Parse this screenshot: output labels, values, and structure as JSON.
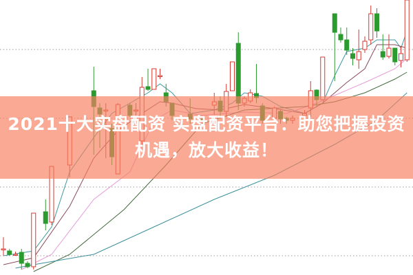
{
  "banner": {
    "line1": "2021十大实盘配资 实盘配资平台：助您把握投资",
    "line2": "机遇，放大收益！"
  },
  "colors": {
    "up": "#d8362e",
    "down": "#2b9b2f",
    "banner": "#f68062",
    "grid": "#9a9a9a",
    "ma5": "#3e9aa0",
    "ma10": "#8a4a5a",
    "ma20": "#e79ad8",
    "ma30": "#3f6b3a",
    "ma60": "#3a8f9a"
  },
  "chart_data": {
    "type": "candlestick",
    "title": "",
    "grid": true,
    "legend": "none",
    "candles": [
      {
        "day": 0,
        "o": 3.7,
        "c": 3.8,
        "h": 5.5,
        "l": 2.8
      },
      {
        "day": 1,
        "o": 3.5,
        "c": 3.0,
        "h": 3.8,
        "l": 2.8
      },
      {
        "day": 2,
        "o": 3.0,
        "c": 3.0,
        "h": 3.4,
        "l": 2.8
      },
      {
        "day": 3,
        "o": 3.3,
        "c": 1.7,
        "h": 3.8,
        "l": 0.8
      },
      {
        "day": 4,
        "o": 1.7,
        "c": 1.2,
        "h": 2.0,
        "l": 1.0
      },
      {
        "day": 5,
        "o": 1.2,
        "c": 9.0,
        "h": 9.0,
        "l": 0.8
      },
      {
        "day": 7,
        "o": 9.2,
        "c": 7.5,
        "h": 11.0,
        "l": 6.5
      },
      {
        "day": 8,
        "o": 7.7,
        "c": 15.8,
        "h": 15.8,
        "l": 7.3
      },
      {
        "day": 11,
        "o": 16.0,
        "c": 23.0,
        "h": 23.0,
        "l": 14.2
      },
      {
        "day": 15,
        "o": 26.8,
        "c": 24.5,
        "h": 30.3,
        "l": 17.5
      },
      {
        "day": 16,
        "o": 24.3,
        "c": 23.4,
        "h": 25.0,
        "l": 18.5
      },
      {
        "day": 17,
        "o": 24.0,
        "c": 24.0,
        "h": 25.0,
        "l": 17.0
      },
      {
        "day": 18,
        "o": 21.3,
        "c": 17.2,
        "h": 22.0,
        "l": 16.0
      },
      {
        "day": 19,
        "o": 14.7,
        "c": 24.8,
        "h": 25.0,
        "l": 14.7
      },
      {
        "day": 21,
        "o": 24.7,
        "c": 23.2,
        "h": 25.0,
        "l": 23.0
      },
      {
        "day": 22,
        "o": 24.0,
        "c": 24.0,
        "h": 25.0,
        "l": 22.0
      },
      {
        "day": 23,
        "o": 19.5,
        "c": 27.3,
        "h": 28.8,
        "l": 19.0
      },
      {
        "day": 24,
        "o": 27.4,
        "c": 27.0,
        "h": 30.0,
        "l": 26.8
      },
      {
        "day": 25,
        "o": 27.0,
        "c": 30.0,
        "h": 30.0,
        "l": 27.0
      },
      {
        "day": 26,
        "o": 29.0,
        "c": 29.0,
        "h": 30.0,
        "l": 28.5
      },
      {
        "day": 27,
        "o": 26.5,
        "c": 25.2,
        "h": 27.8,
        "l": 24.5
      },
      {
        "day": 28,
        "o": 25.0,
        "c": 23.2,
        "h": 25.0,
        "l": 22.5
      },
      {
        "day": 31,
        "o": 23.4,
        "c": 22.7,
        "h": 25.7,
        "l": 22.0
      },
      {
        "day": 33,
        "o": 22.7,
        "c": 22.3,
        "h": 23.0,
        "l": 22.0
      },
      {
        "day": 35,
        "o": 24.7,
        "c": 25.2,
        "h": 26.5,
        "l": 23.3
      },
      {
        "day": 36,
        "o": 25.3,
        "c": 23.8,
        "h": 26.0,
        "l": 23.0
      },
      {
        "day": 37,
        "o": 23.8,
        "c": 26.7,
        "h": 27.8,
        "l": 23.0
      },
      {
        "day": 38,
        "o": 26.8,
        "c": 31.0,
        "h": 31.0,
        "l": 26.8
      },
      {
        "day": 39,
        "o": 33.7,
        "c": 25.0,
        "h": 35.3,
        "l": 24.0
      },
      {
        "day": 40,
        "o": 25.0,
        "c": 25.7,
        "h": 26.0,
        "l": 24.5
      },
      {
        "day": 41,
        "o": 25.3,
        "c": 26.5,
        "h": 27.0,
        "l": 25.0
      },
      {
        "day": 42,
        "o": 26.4,
        "c": 25.8,
        "h": 30.7,
        "l": 25.0
      },
      {
        "day": 43,
        "o": 24.6,
        "c": 22.5,
        "h": 25.0,
        "l": 22.0
      },
      {
        "day": 45,
        "o": 22.8,
        "c": 24.3,
        "h": 24.5,
        "l": 22.5
      },
      {
        "day": 46,
        "o": 23.8,
        "c": 22.7,
        "h": 24.0,
        "l": 22.0
      },
      {
        "day": 47,
        "o": 22.8,
        "c": 22.5,
        "h": 23.0,
        "l": 22.0
      },
      {
        "day": 48,
        "o": 22.5,
        "c": 22.8,
        "h": 23.2,
        "l": 22.0
      },
      {
        "day": 50,
        "o": 23.2,
        "c": 23.5,
        "h": 24.0,
        "l": 23.0
      },
      {
        "day": 51,
        "o": 24.3,
        "c": 26.8,
        "h": 28.2,
        "l": 23.0
      },
      {
        "day": 52,
        "o": 26.9,
        "c": 25.5,
        "h": 27.0,
        "l": 24.5
      },
      {
        "day": 53,
        "o": 25.5,
        "c": 31.7,
        "h": 31.7,
        "l": 25.5
      },
      {
        "day": 55,
        "o": 38.0,
        "c": 35.3,
        "h": 38.0,
        "l": 28.2
      },
      {
        "day": 56,
        "o": 35.0,
        "c": 34.2,
        "h": 36.0,
        "l": 33.8
      },
      {
        "day": 57,
        "o": 34.2,
        "c": 32.7,
        "h": 36.0,
        "l": 32.0
      },
      {
        "day": 58,
        "o": 32.2,
        "c": 31.5,
        "h": 33.0,
        "l": 30.5
      },
      {
        "day": 59,
        "o": 31.3,
        "c": 32.5,
        "h": 35.7,
        "l": 30.0
      },
      {
        "day": 60,
        "o": 32.8,
        "c": 34.0,
        "h": 34.7,
        "l": 32.3
      },
      {
        "day": 61,
        "o": 34.2,
        "c": 38.0,
        "h": 39.2,
        "l": 33.5
      },
      {
        "day": 62,
        "o": 38.0,
        "c": 35.5,
        "h": 38.8,
        "l": 34.5
      },
      {
        "day": 63,
        "o": 32.5,
        "c": 31.7,
        "h": 35.0,
        "l": 31.3
      },
      {
        "day": 64,
        "o": 31.8,
        "c": 33.0,
        "h": 35.0,
        "l": 31.5
      },
      {
        "day": 65,
        "o": 33.0,
        "c": 31.0,
        "h": 33.0,
        "l": 30.5
      },
      {
        "day": 66,
        "o": 31.2,
        "c": 32.2,
        "h": 33.2,
        "l": 30.2
      },
      {
        "day": 67,
        "o": 31.3,
        "c": 40.0,
        "h": 40.0,
        "l": 31.0
      }
    ],
    "moving_averages": [
      {
        "key": "ma5",
        "points": [
          [
            0,
            2.8
          ],
          [
            5,
            3.5
          ],
          [
            8,
            7.0
          ],
          [
            11,
            15.0
          ],
          [
            15,
            20.0
          ],
          [
            18,
            23.5
          ],
          [
            21,
            25.0
          ],
          [
            24,
            26.5
          ],
          [
            26,
            27.8
          ],
          [
            28,
            26.5
          ],
          [
            31,
            23.5
          ],
          [
            35,
            24.0
          ],
          [
            38,
            25.0
          ],
          [
            40,
            26.5
          ],
          [
            43,
            26.0
          ],
          [
            46,
            24.5
          ],
          [
            50,
            23.5
          ],
          [
            53,
            25.0
          ],
          [
            55,
            29.0
          ],
          [
            57,
            32.5
          ],
          [
            60,
            33.0
          ],
          [
            62,
            34.2
          ],
          [
            65,
            34.2
          ],
          [
            66,
            33.0
          ],
          [
            67,
            35.5
          ]
        ]
      },
      {
        "key": "ma10",
        "points": [
          [
            0,
            1.5
          ],
          [
            5,
            2.5
          ],
          [
            11,
            10.0
          ],
          [
            15,
            17.0
          ],
          [
            19,
            21.0
          ],
          [
            23,
            23.5
          ],
          [
            26,
            25.2
          ],
          [
            28,
            25.0
          ],
          [
            32,
            24.2
          ],
          [
            36,
            24.0
          ],
          [
            40,
            24.8
          ],
          [
            45,
            24.2
          ],
          [
            50,
            23.5
          ],
          [
            53,
            25.0
          ],
          [
            57,
            28.0
          ],
          [
            60,
            30.0
          ],
          [
            62,
            33.5
          ],
          [
            65,
            33.5
          ],
          [
            67,
            33.0
          ]
        ]
      },
      {
        "key": "ma20",
        "points": [
          [
            3,
            0.8
          ],
          [
            8,
            3.0
          ],
          [
            15,
            11.0
          ],
          [
            21,
            15.0
          ],
          [
            25,
            22.5
          ],
          [
            28,
            24.0
          ],
          [
            33,
            23.2
          ],
          [
            40,
            23.7
          ],
          [
            47,
            23.5
          ],
          [
            52,
            25.0
          ],
          [
            56,
            26.5
          ],
          [
            60,
            28.0
          ],
          [
            65,
            30.0
          ],
          [
            67,
            31.5
          ]
        ]
      },
      {
        "key": "ma30",
        "points": [
          [
            5,
            0.5
          ],
          [
            11,
            3.0
          ],
          [
            20,
            9.5
          ],
          [
            27,
            16.0
          ],
          [
            33,
            22.0
          ],
          [
            40,
            24.0
          ],
          [
            50,
            24.5
          ],
          [
            55,
            25.2
          ],
          [
            60,
            26.5
          ],
          [
            65,
            28.5
          ],
          [
            67,
            29.5
          ]
        ]
      },
      {
        "key": "ma60",
        "points": [
          [
            2,
            1.0
          ],
          [
            5,
            1.5
          ],
          [
            15,
            3.0
          ],
          [
            25,
            7.0
          ],
          [
            35,
            11.0
          ],
          [
            45,
            14.5
          ],
          [
            55,
            19.0
          ],
          [
            62,
            22.5
          ],
          [
            67,
            26.5
          ]
        ]
      }
    ]
  }
}
